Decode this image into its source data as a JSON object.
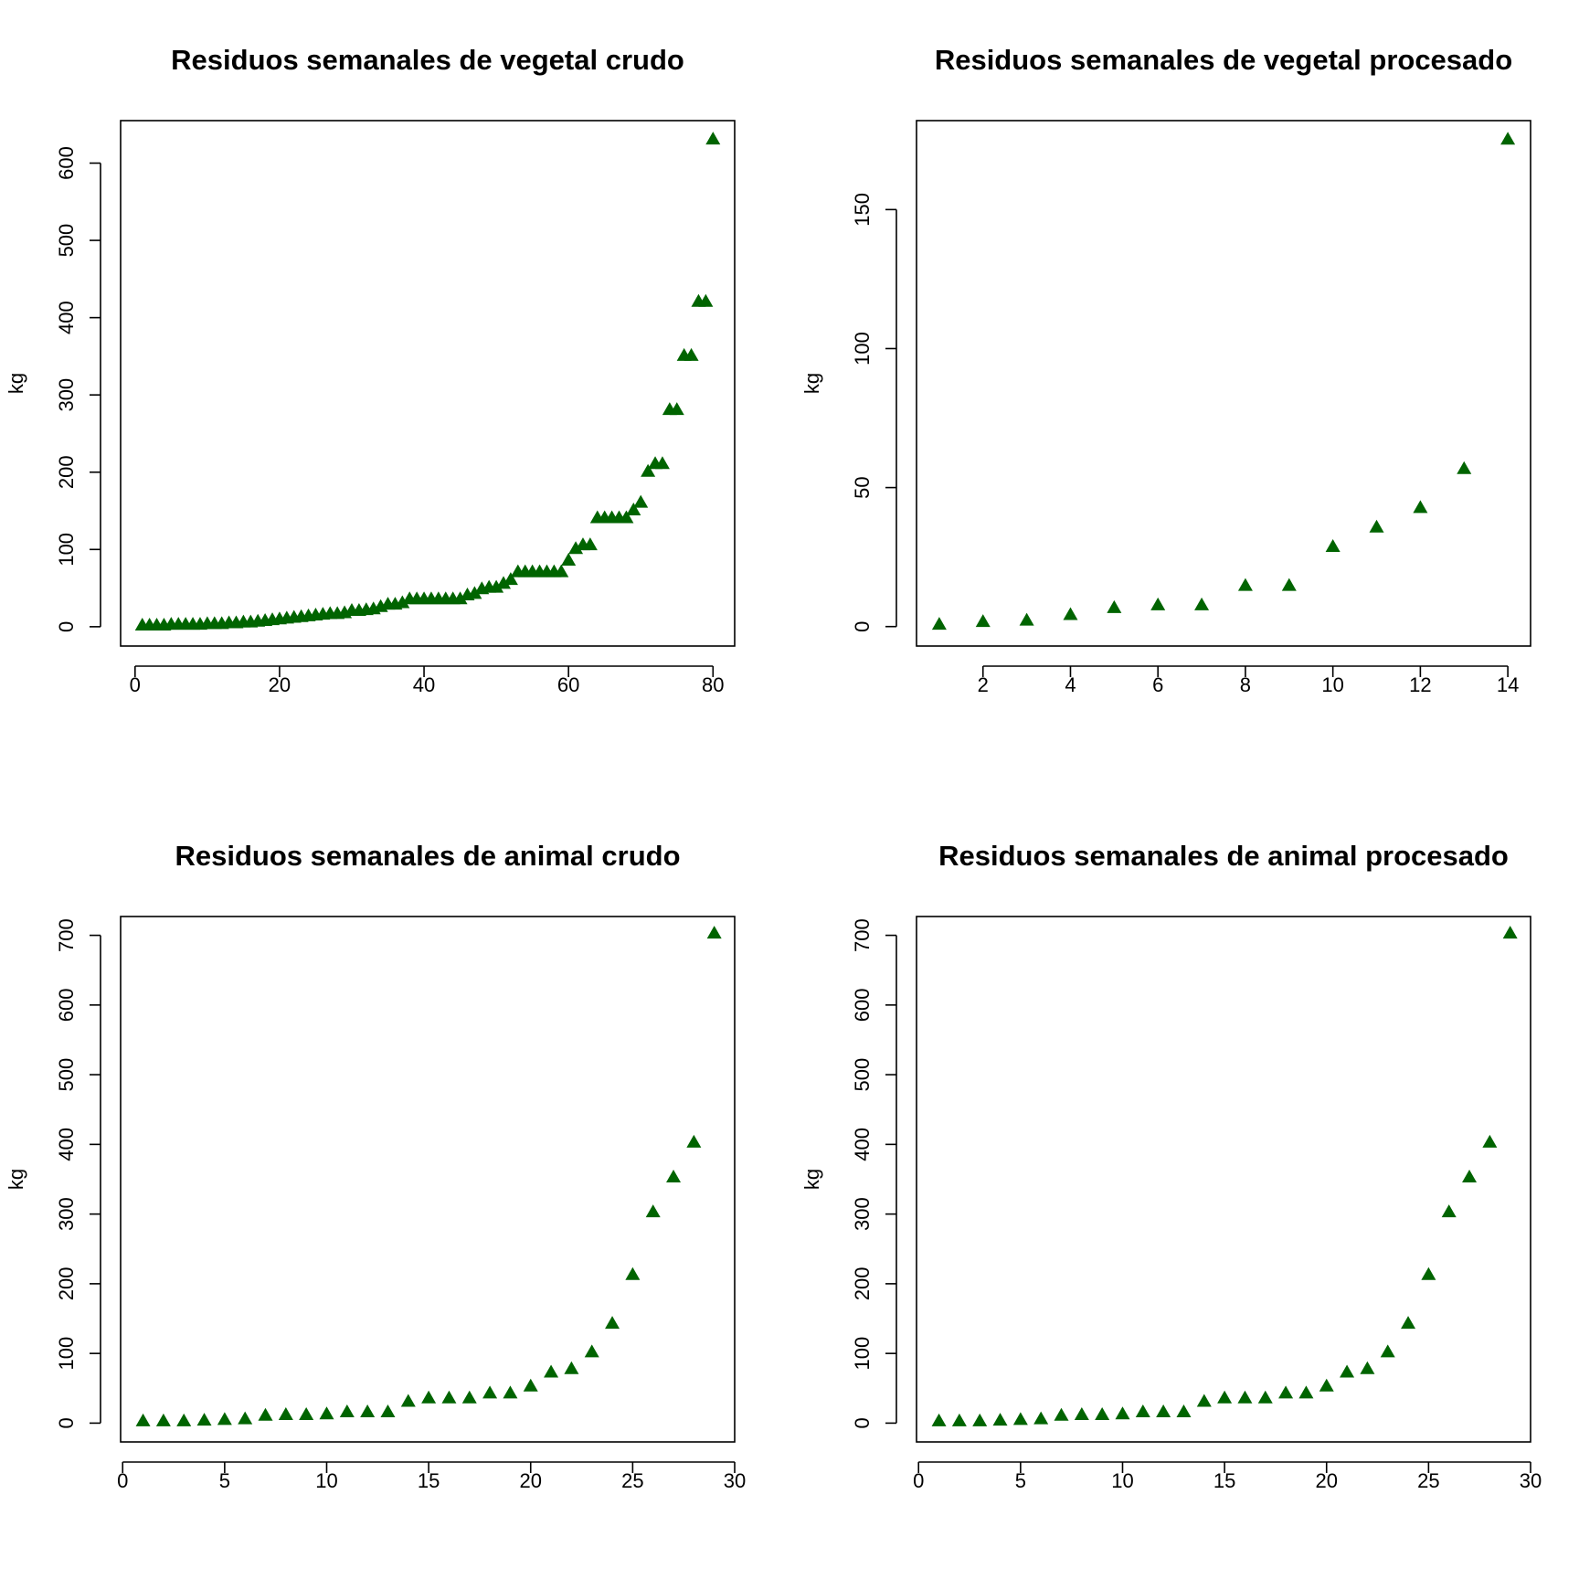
{
  "figure": {
    "background": "#ffffff",
    "marker_color": "#006400",
    "marker": "triangle"
  },
  "chart_data": [
    {
      "type": "scatter",
      "title": "Residuos semanales de vegetal crudo",
      "xlabel": "",
      "ylabel": "kg",
      "xlim": [
        -2,
        83
      ],
      "ylim": [
        -25,
        655
      ],
      "xticks": [
        0,
        20,
        40,
        60,
        80
      ],
      "yticks": [
        0,
        100,
        200,
        300,
        400,
        500,
        600
      ],
      "x": [
        1,
        2,
        3,
        4,
        5,
        6,
        7,
        8,
        9,
        10,
        11,
        12,
        13,
        14,
        15,
        16,
        17,
        18,
        19,
        20,
        21,
        22,
        23,
        24,
        25,
        26,
        27,
        28,
        29,
        30,
        31,
        32,
        33,
        34,
        35,
        36,
        37,
        38,
        39,
        40,
        41,
        42,
        43,
        44,
        45,
        46,
        47,
        48,
        49,
        50,
        51,
        52,
        53,
        54,
        55,
        56,
        57,
        58,
        59,
        60,
        61,
        62,
        63,
        64,
        65,
        66,
        67,
        68,
        69,
        70,
        71,
        72,
        73,
        74,
        75,
        76,
        77,
        78,
        79,
        80
      ],
      "y": [
        1,
        1,
        1,
        1,
        2,
        2,
        2,
        2,
        2,
        3,
        3,
        3,
        4,
        4,
        5,
        5,
        6,
        7,
        8,
        9,
        10,
        11,
        12,
        13,
        14,
        15,
        16,
        16,
        17,
        20,
        20,
        21,
        22,
        25,
        28,
        28,
        30,
        35,
        35,
        35,
        35,
        35,
        35,
        35,
        35,
        40,
        42,
        48,
        50,
        50,
        55,
        60,
        70,
        70,
        70,
        70,
        70,
        70,
        70,
        85,
        100,
        105,
        105,
        140,
        140,
        140,
        140,
        140,
        150,
        160,
        200,
        210,
        210,
        280,
        280,
        350,
        350,
        420,
        420,
        630
      ]
    },
    {
      "type": "scatter",
      "title": "Residuos semanales de vegetal procesado",
      "xlabel": "",
      "ylabel": "kg",
      "xlim": [
        0.48,
        14.52
      ],
      "ylim": [
        -7,
        182
      ],
      "xticks": [
        2,
        4,
        6,
        8,
        10,
        12,
        14
      ],
      "yticks": [
        0,
        50,
        100,
        150
      ],
      "x": [
        1,
        2,
        3,
        4,
        5,
        6,
        7,
        8,
        9,
        10,
        11,
        12,
        13,
        14
      ],
      "y": [
        0.5,
        1.5,
        2,
        4,
        6.5,
        7.5,
        7.5,
        14.5,
        14.5,
        28.5,
        35.5,
        42.5,
        56.5,
        175
      ]
    },
    {
      "type": "scatter",
      "title": "Residuos semanales de animal crudo",
      "xlabel": "",
      "ylabel": "kg",
      "xlim": [
        -0.1,
        30
      ],
      "ylim": [
        -27,
        727
      ],
      "xticks": [
        0,
        5,
        10,
        15,
        20,
        25,
        30
      ],
      "yticks": [
        0,
        100,
        200,
        300,
        400,
        500,
        600,
        700
      ],
      "x": [
        1,
        2,
        3,
        4,
        5,
        6,
        7,
        8,
        9,
        10,
        11,
        12,
        13,
        14,
        15,
        16,
        17,
        18,
        19,
        20,
        21,
        22,
        23,
        24,
        25,
        26,
        27,
        28,
        29
      ],
      "y": [
        2,
        2,
        2,
        3,
        4,
        5,
        10,
        11,
        11,
        12,
        15,
        15,
        15,
        30,
        35,
        35,
        35,
        42,
        42,
        52,
        72,
        77,
        101,
        142,
        212,
        302,
        352,
        402,
        702
      ]
    },
    {
      "type": "scatter",
      "title": "Residuos semanales de animal procesado",
      "xlabel": "",
      "ylabel": "kg",
      "xlim": [
        -0.1,
        30
      ],
      "ylim": [
        -27,
        727
      ],
      "xticks": [
        0,
        5,
        10,
        15,
        20,
        25,
        30
      ],
      "yticks": [
        0,
        100,
        200,
        300,
        400,
        500,
        600,
        700
      ],
      "x": [
        1,
        2,
        3,
        4,
        5,
        6,
        7,
        8,
        9,
        10,
        11,
        12,
        13,
        14,
        15,
        16,
        17,
        18,
        19,
        20,
        21,
        22,
        23,
        24,
        25,
        26,
        27,
        28,
        29
      ],
      "y": [
        2,
        2,
        2,
        3,
        4,
        5,
        10,
        11,
        11,
        12,
        15,
        15,
        15,
        30,
        35,
        35,
        35,
        42,
        42,
        52,
        72,
        77,
        101,
        142,
        212,
        302,
        352,
        402,
        702
      ]
    }
  ]
}
